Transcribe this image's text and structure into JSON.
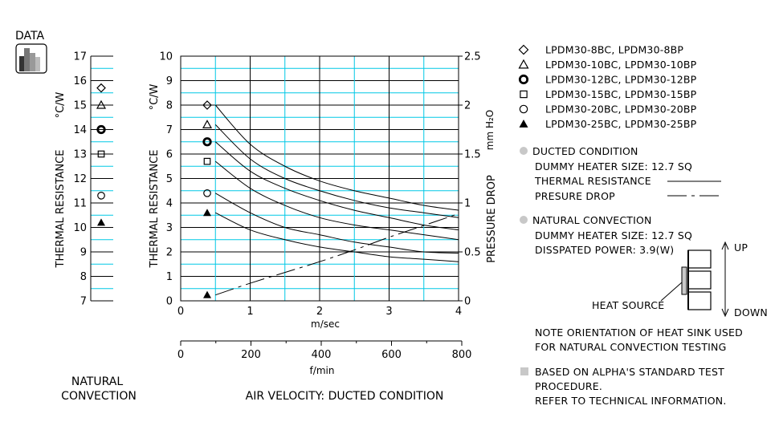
{
  "badge": {
    "label": "DATA",
    "icon": "bar-chart-icon"
  },
  "colors": {
    "grid": "#00c8e6",
    "line": "#000000",
    "dot": "#c8c8c8"
  },
  "natural_panel": {
    "ylabel": "THERMAL  RESISTANCE",
    "unit": "°C/W",
    "title_line1": "NATURAL",
    "title_line2": "CONVECTION"
  },
  "main_panel": {
    "ylabel": "THERMAL  RESISTANCE",
    "unit": "°C/W",
    "right_label": "PRESSURE  DROP",
    "right_unit": "mm H₂O",
    "xlabel_ms": "m/sec",
    "xlabel_fmin": "f/min",
    "caption": "AIR VELOCITY:  DUCTED CONDITION"
  },
  "legend": [
    {
      "symbol": "diamond",
      "label": "LPDM30-8BC,   LPDM30-8BP"
    },
    {
      "symbol": "triangle",
      "label": "LPDM30-10BC,  LPDM30-10BP"
    },
    {
      "symbol": "ring",
      "label": "LPDM30-12BC,  LPDM30-12BP"
    },
    {
      "symbol": "square",
      "label": "LPDM30-15BC,  LPDM30-15BP"
    },
    {
      "symbol": "circle",
      "label": "LPDM30-20BC,  LPDM30-20BP"
    },
    {
      "symbol": "filled-triangle",
      "label": "LPDM30-25BC,  LPDM30-25BP"
    }
  ],
  "notes": {
    "ducted_title": "DUCTED CONDITION",
    "ducted_heater": "DUMMY HEATER SIZE:  12.7 SQ",
    "thermal_resistance": "THERMAL RESISTANCE",
    "pressure_drop": "PRESURE DROP",
    "natural_title": "NATURAL CONVECTION",
    "natural_heater": "DUMMY HEATER SIZE:  12.7 SQ",
    "dissipated_power": "DISSPATED POWER:  3.9(W)",
    "up": "UP",
    "down": "DOWN",
    "heat_source": "HEAT SOURCE",
    "orientation_line1": "NOTE ORIENTATION OF HEAT SINK USED",
    "orientation_line2": "FOR NATURAL CONVECTION TESTING",
    "standard_line1": "BASED ON ALPHA'S STANDARD TEST",
    "standard_line2": "PROCEDURE.",
    "standard_line3": "REFER TO TECHNICAL INFORMATION."
  },
  "chart_data": [
    {
      "type": "scatter",
      "panel": "natural convection",
      "ylabel": "THERMAL  RESISTANCE °C/W",
      "ylim": [
        7,
        17
      ],
      "yticks": [
        7,
        8,
        9,
        10,
        11,
        12,
        13,
        14,
        15,
        16,
        17
      ],
      "grid": true,
      "points": [
        {
          "series": "LPDM30-8BC,   LPDM30-8BP",
          "symbol": "diamond",
          "y": 15.7
        },
        {
          "series": "LPDM30-10BC,  LPDM30-10BP",
          "symbol": "triangle",
          "y": 15.0
        },
        {
          "series": "LPDM30-12BC,  LPDM30-12BP",
          "symbol": "ring",
          "y": 14.0
        },
        {
          "series": "LPDM30-15BC,  LPDM30-15BP",
          "symbol": "square",
          "y": 13.0
        },
        {
          "series": "LPDM30-20BC,  LPDM30-20BP",
          "symbol": "circle",
          "y": 11.3
        },
        {
          "series": "LPDM30-25BC,  LPDM30-25BP",
          "symbol": "filled-triangle",
          "y": 10.2
        }
      ]
    },
    {
      "type": "line",
      "panel": "ducted condition",
      "xlabel": "m/sec",
      "xlim": [
        0,
        4
      ],
      "xticks": [
        0,
        1,
        2,
        3,
        4
      ],
      "x2label": "f/min",
      "x2lim": [
        0,
        800
      ],
      "x2ticks": [
        0,
        200,
        400,
        600,
        800
      ],
      "ylabel": "THERMAL  RESISTANCE °C/W",
      "ylim": [
        0,
        10
      ],
      "yticks": [
        0,
        1,
        2,
        3,
        4,
        5,
        6,
        7,
        8,
        9,
        10
      ],
      "y2label": "PRESSURE  DROP mm H₂O",
      "y2lim": [
        0,
        2.5
      ],
      "y2ticks": [
        0,
        0.5,
        1.0,
        1.5,
        2.0,
        2.5
      ],
      "grid": true,
      "series": [
        {
          "name": "LPDM30-8BC,   LPDM30-8BP",
          "symbol": "diamond",
          "marker_y": 8.0,
          "x": [
            0.5,
            1,
            1.5,
            2,
            2.5,
            3,
            3.5,
            4
          ],
          "y": [
            8.0,
            6.4,
            5.5,
            4.9,
            4.5,
            4.2,
            3.9,
            3.7
          ]
        },
        {
          "name": "LPDM30-10BC,  LPDM30-10BP",
          "symbol": "triangle",
          "marker_y": 7.2,
          "x": [
            0.5,
            1,
            1.5,
            2,
            2.5,
            3,
            3.5,
            4
          ],
          "y": [
            7.2,
            5.8,
            5.0,
            4.5,
            4.1,
            3.8,
            3.6,
            3.4
          ]
        },
        {
          "name": "LPDM30-12BC,  LPDM30-12BP",
          "symbol": "ring",
          "marker_y": 6.5,
          "x": [
            0.5,
            1,
            1.5,
            2,
            2.5,
            3,
            3.5,
            4
          ],
          "y": [
            6.5,
            5.3,
            4.6,
            4.1,
            3.7,
            3.4,
            3.1,
            2.9
          ]
        },
        {
          "name": "LPDM30-15BC,  LPDM30-15BP",
          "symbol": "square",
          "marker_y": 5.7,
          "x": [
            0.5,
            1,
            1.5,
            2,
            2.5,
            3,
            3.5,
            4
          ],
          "y": [
            5.7,
            4.6,
            3.9,
            3.4,
            3.1,
            2.9,
            2.7,
            2.5
          ]
        },
        {
          "name": "LPDM30-20BC,  LPDM30-20BP",
          "symbol": "circle",
          "marker_y": 4.4,
          "x": [
            0.5,
            1,
            1.5,
            2,
            2.5,
            3,
            3.5,
            4
          ],
          "y": [
            4.4,
            3.6,
            3.0,
            2.7,
            2.4,
            2.2,
            2.0,
            1.95
          ]
        },
        {
          "name": "LPDM30-25BC,  LPDM30-25BP",
          "symbol": "filled-triangle",
          "marker_y": 3.6,
          "x": [
            0.5,
            1,
            1.5,
            2,
            2.5,
            3,
            3.5,
            4
          ],
          "y": [
            3.6,
            2.9,
            2.5,
            2.2,
            2.0,
            1.8,
            1.7,
            1.6
          ]
        },
        {
          "name": "PRESURE DROP",
          "axis": "y2",
          "dash": true,
          "symbol": "filled-triangle",
          "marker_y": 0.06,
          "x": [
            0.5,
            1,
            1.5,
            2,
            2.5,
            3,
            3.5,
            4
          ],
          "y": [
            0.06,
            0.18,
            0.29,
            0.4,
            0.52,
            0.65,
            0.77,
            0.89
          ]
        }
      ]
    }
  ]
}
